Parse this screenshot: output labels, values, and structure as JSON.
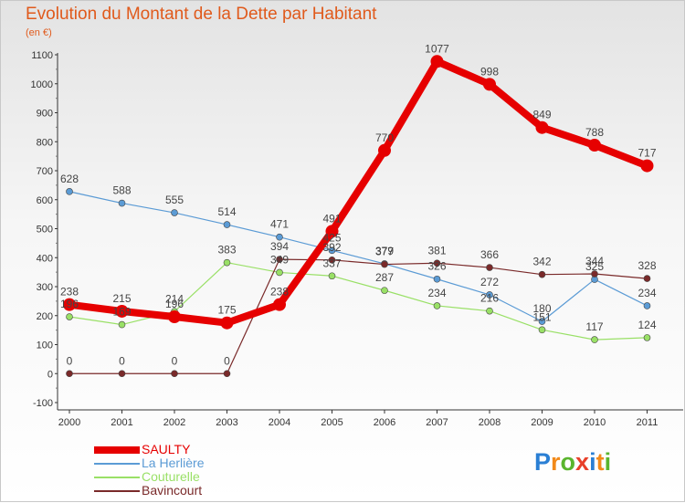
{
  "title": "Evolution du Montant de la Dette par Habitant",
  "unit": "(en €)",
  "logo": {
    "text": "Proxiti",
    "colors": [
      "#2a7fd4",
      "#f28a1a",
      "#5ab52e",
      "#e8402a",
      "#2a7fd4",
      "#f28a1a",
      "#5ab52e"
    ]
  },
  "chart_data": {
    "type": "line",
    "categories": [
      "2000",
      "2001",
      "2002",
      "2003",
      "2004",
      "2005",
      "2006",
      "2007",
      "2008",
      "2009",
      "2010",
      "2011"
    ],
    "ylim": [
      -100,
      1100
    ],
    "yticks": [
      -100,
      0,
      100,
      200,
      300,
      400,
      500,
      600,
      700,
      800,
      900,
      1000,
      1100
    ],
    "grid": false,
    "legend": "bottom-left",
    "series": [
      {
        "name": "SAULTY",
        "color": "#e60000",
        "values": [
          238,
          215,
          196,
          175,
          238,
          491,
          770,
          1077,
          998,
          849,
          788,
          717
        ]
      },
      {
        "name": "La Herlière",
        "color": "#5b9bd5",
        "values": [
          628,
          588,
          555,
          514,
          471,
          425,
          379,
          326,
          272,
          180,
          325,
          234
        ]
      },
      {
        "name": "Couturelle",
        "color": "#99e066",
        "values": [
          196,
          169,
          214,
          383,
          349,
          337,
          287,
          234,
          216,
          151,
          117,
          124
        ]
      },
      {
        "name": "Bavincourt",
        "color": "#7a2a2a",
        "values": [
          0,
          0,
          0,
          0,
          394,
          392,
          377,
          381,
          366,
          342,
          344,
          328
        ]
      }
    ]
  }
}
